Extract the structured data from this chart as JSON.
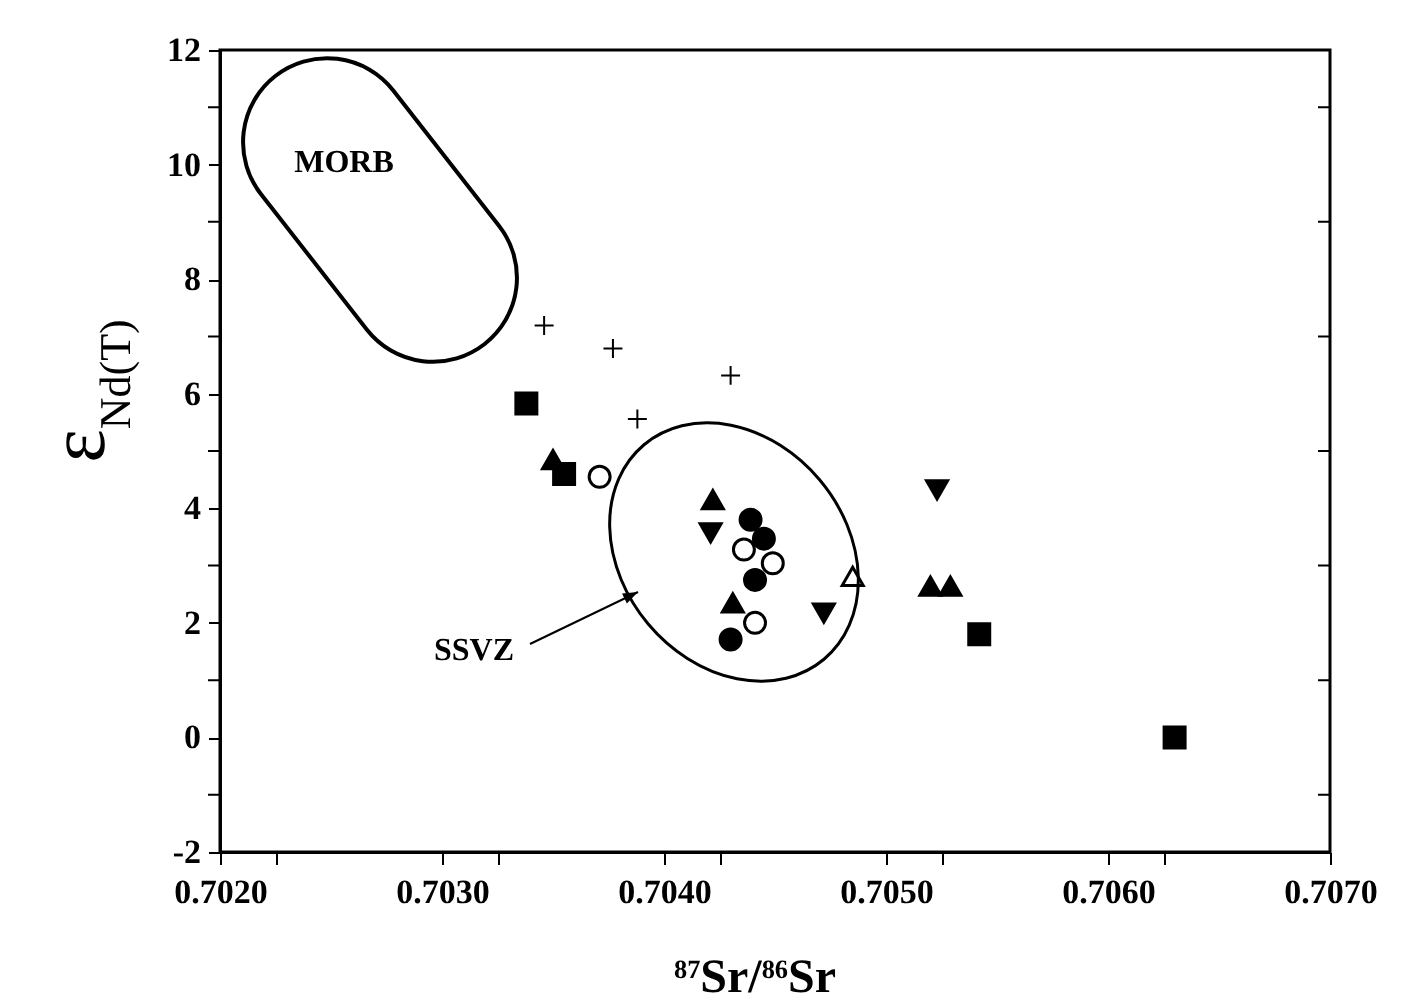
{
  "chart_data": {
    "type": "scatter",
    "xlabel": "$^{87}$Sr/$^{86}$Sr",
    "ylabel": "ε$_{Nd(T)}$",
    "xlim": [
      0.702,
      0.707
    ],
    "ylim": [
      -2,
      12
    ],
    "xticks": [
      {
        "value": 0.702,
        "label": "0.7020"
      },
      {
        "value": 0.70225,
        "label": null
      },
      {
        "value": 0.703,
        "label": "0.7030"
      },
      {
        "value": 0.70325,
        "label": null
      },
      {
        "value": 0.704,
        "label": "0.7040"
      },
      {
        "value": 0.70425,
        "label": null
      },
      {
        "value": 0.705,
        "label": "0.7050"
      },
      {
        "value": 0.70525,
        "label": null
      },
      {
        "value": 0.706,
        "label": "0.7060"
      },
      {
        "value": 0.70625,
        "label": null
      },
      {
        "value": 0.707,
        "label": "0.7070"
      }
    ],
    "yticks": [
      -2,
      {
        "value": -1,
        "label": null
      },
      0,
      {
        "value": 1,
        "label": null
      },
      2,
      {
        "value": 3,
        "label": null
      },
      4,
      {
        "value": 5,
        "label": null
      },
      6,
      {
        "value": 7,
        "label": null
      },
      8,
      {
        "value": 9,
        "label": null
      },
      10,
      {
        "value": 11,
        "label": null
      },
      12
    ],
    "grid": false,
    "annotations": [
      "MORB",
      "SSVZ"
    ],
    "series": [
      {
        "color": "#000000",
        "marker": "cross",
        "x": [
          0.70346,
          0.70377,
          0.7043,
          0.70388
        ],
        "values": [
          7.19,
          6.79,
          6.32,
          5.56
        ]
      },
      {
        "color": "#000000",
        "marker": "square",
        "x": [
          0.70338,
          0.70355,
          0.70542,
          0.7063
        ],
        "values": [
          5.83,
          4.6,
          1.8,
          0
        ]
      },
      {
        "color": "#000000",
        "marker": "triangle",
        "x": [
          0.7035,
          0.70422,
          0.70431,
          0.7052,
          0.70529
        ],
        "values": [
          4.85,
          4.15,
          2.35,
          2.64,
          2.64
        ]
      },
      {
        "color": "#000000",
        "marker": "triangle-down",
        "x": [
          0.70421,
          0.70472,
          0.70523
        ],
        "values": [
          3.57,
          2.17,
          4.32
        ]
      },
      {
        "color": "#000000",
        "marker": "circle",
        "x": [
          0.70439,
          0.70445,
          0.70441,
          0.7043
        ],
        "values": [
          3.8,
          3.47,
          2.75,
          1.71
        ]
      },
      {
        "color": "#ffffff",
        "marker": "circle",
        "x": [
          0.70371,
          0.70436,
          0.70449,
          0.70441
        ],
        "values": [
          4.55,
          3.28,
          3.04,
          2.0
        ]
      },
      {
        "color": "#ffffff",
        "marker": "triangle",
        "x": [
          0.70485
        ],
        "values": [
          2.81
        ]
      }
    ]
  }
}
